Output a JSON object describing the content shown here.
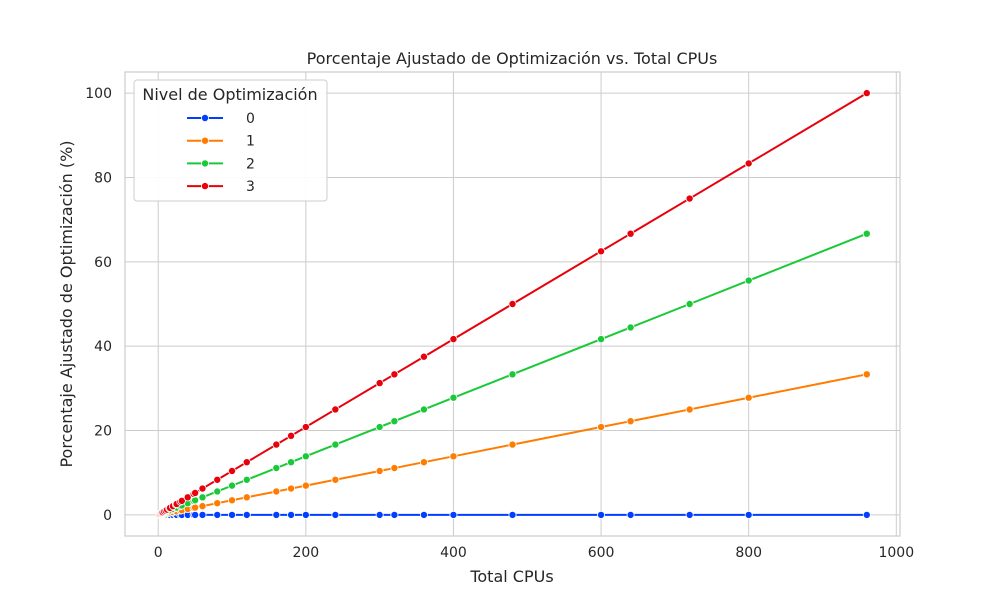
{
  "chart_data": {
    "type": "line",
    "title": "Porcentaje Ajustado de Optimización vs. Total CPUs",
    "xlabel": "Total CPUs",
    "ylabel": "Porcentaje Ajustado de Optimización (%)",
    "xlim": [
      -45,
      1005
    ],
    "ylim": [
      -5,
      105
    ],
    "x_ticks": [
      0,
      200,
      400,
      600,
      800,
      1000
    ],
    "y_ticks": [
      0,
      20,
      40,
      60,
      80,
      100
    ],
    "grid": true,
    "legend": {
      "title": "Nivel de Optimización",
      "placement": "top-left"
    },
    "x": [
      1,
      2,
      3,
      4,
      5,
      6,
      8,
      10,
      12,
      15,
      16,
      20,
      24,
      25,
      30,
      32,
      40,
      48,
      50,
      60,
      80,
      100,
      120,
      160,
      180,
      200,
      240,
      300,
      320,
      360,
      400,
      480,
      600,
      640,
      720,
      800,
      960
    ],
    "series": [
      {
        "name": "0",
        "color": "#023eff",
        "values": [
          0,
          0,
          0,
          0,
          0,
          0,
          0,
          0,
          0,
          0,
          0,
          0,
          0,
          0,
          0,
          0,
          0,
          0,
          0,
          0,
          0,
          0,
          0,
          0,
          0,
          0,
          0,
          0,
          0,
          0,
          0,
          0,
          0,
          0,
          0,
          0,
          0
        ]
      },
      {
        "name": "1",
        "color": "#ff7c00",
        "values": [
          0.03,
          0.07,
          0.1,
          0.14,
          0.17,
          0.21,
          0.28,
          0.35,
          0.42,
          0.52,
          0.56,
          0.69,
          0.83,
          0.87,
          1.04,
          1.11,
          1.39,
          1.67,
          1.74,
          2.08,
          2.78,
          3.47,
          4.17,
          5.56,
          6.25,
          6.94,
          8.33,
          10.42,
          11.11,
          12.5,
          13.89,
          16.67,
          20.83,
          22.22,
          25.0,
          27.78,
          33.33
        ]
      },
      {
        "name": "2",
        "color": "#1ac938",
        "values": [
          0.07,
          0.14,
          0.21,
          0.28,
          0.35,
          0.42,
          0.56,
          0.69,
          0.83,
          1.04,
          1.11,
          1.39,
          1.67,
          1.74,
          2.08,
          2.22,
          2.78,
          3.33,
          3.47,
          4.17,
          5.56,
          6.94,
          8.33,
          11.11,
          12.5,
          13.89,
          16.67,
          20.83,
          22.22,
          25.0,
          27.78,
          33.33,
          41.67,
          44.44,
          50.0,
          55.56,
          66.67
        ]
      },
      {
        "name": "3",
        "color": "#e8000b",
        "values": [
          0.1,
          0.21,
          0.31,
          0.42,
          0.52,
          0.63,
          0.83,
          1.04,
          1.25,
          1.56,
          1.67,
          2.08,
          2.5,
          2.6,
          3.13,
          3.33,
          4.17,
          5.0,
          5.21,
          6.25,
          8.33,
          10.42,
          12.5,
          16.67,
          18.75,
          20.83,
          25.0,
          31.25,
          33.33,
          37.5,
          41.67,
          50.0,
          62.5,
          66.67,
          75.0,
          83.33,
          100.0
        ]
      }
    ]
  }
}
